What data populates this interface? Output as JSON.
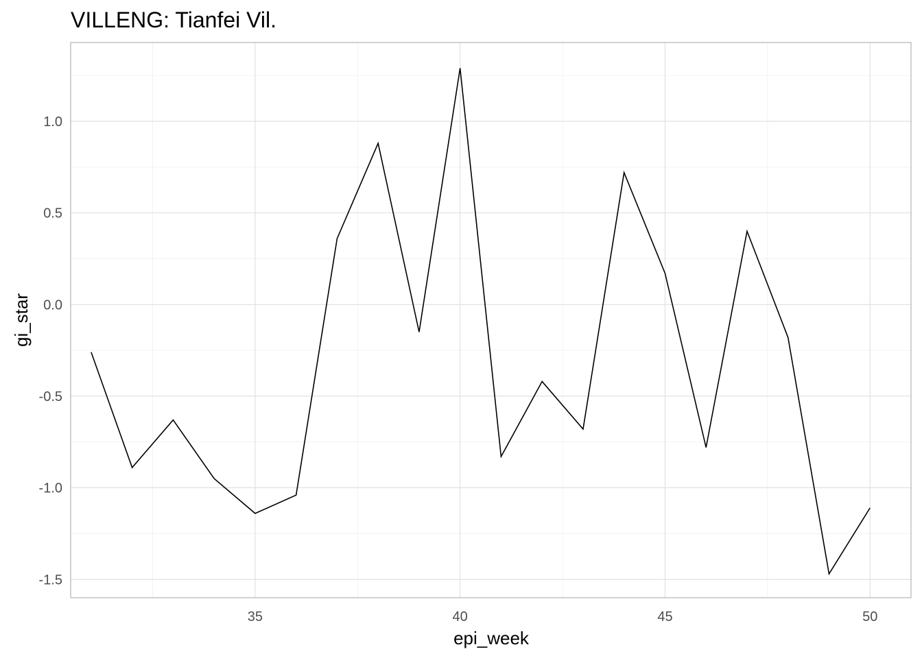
{
  "chart_data": {
    "type": "line",
    "title": "VILLENG: Tianfei Vil.",
    "xlabel": "epi_week",
    "ylabel": "gi_star",
    "xlim": [
      30.5,
      51
    ],
    "ylim": [
      -1.6,
      1.43
    ],
    "x_ticks": [
      35,
      40,
      45,
      50
    ],
    "x_tick_labels": [
      "35",
      "40",
      "45",
      "50"
    ],
    "y_ticks": [
      -1.5,
      -1.0,
      -0.5,
      0.0,
      0.5,
      1.0
    ],
    "y_tick_labels": [
      "-1.5",
      "-1.0",
      "-0.5",
      "0.0",
      "0.5",
      "1.0"
    ],
    "grid": true,
    "series": [
      {
        "color": "#000000",
        "x": [
          31,
          32,
          33,
          34,
          35,
          36,
          37,
          38,
          39,
          40,
          41,
          42,
          43,
          44,
          45,
          46,
          47,
          48,
          49,
          50
        ],
        "y": [
          -0.26,
          -0.89,
          -0.63,
          -0.95,
          -1.14,
          -1.04,
          0.36,
          0.88,
          -0.15,
          1.29,
          -0.83,
          -0.42,
          -0.68,
          0.72,
          0.17,
          -0.78,
          0.4,
          -0.18,
          -1.47,
          -1.11
        ]
      }
    ]
  }
}
